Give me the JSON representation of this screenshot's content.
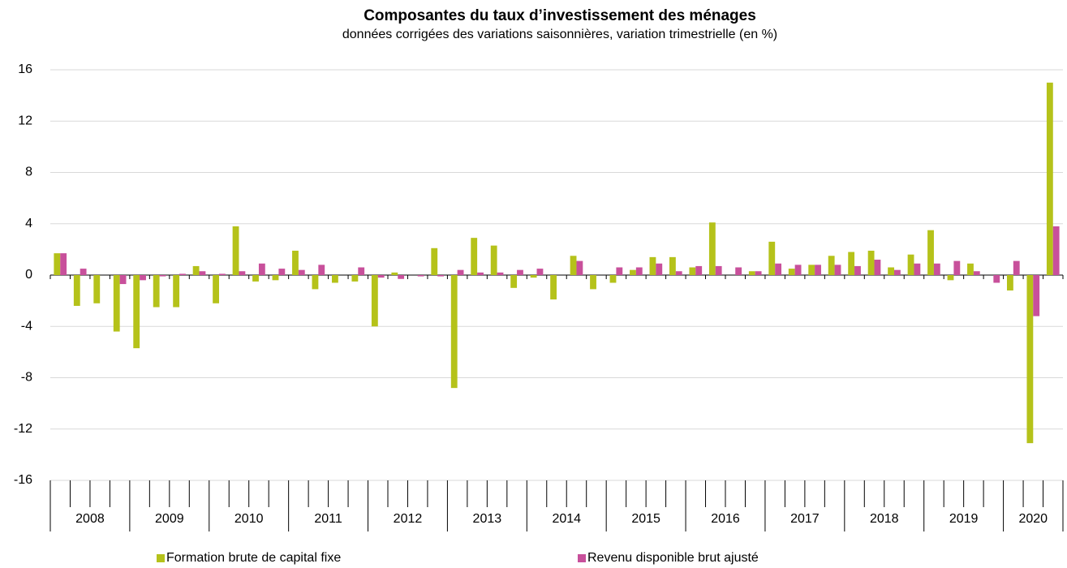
{
  "chart_data": {
    "type": "bar",
    "title": "Composantes du taux d’investissement des ménages",
    "subtitle": "données corrigées des variations saisonnières, variation trimestrielle (en %)",
    "groups": [
      "2008",
      "2009",
      "2010",
      "2011",
      "2012",
      "2013",
      "2014",
      "2015",
      "2016",
      "2017",
      "2018",
      "2019",
      "2020"
    ],
    "categories": [
      null,
      null,
      null,
      null,
      null,
      null,
      null,
      null,
      null,
      null,
      null,
      null,
      null,
      null,
      null,
      null,
      null,
      null,
      null,
      null,
      null,
      null,
      null,
      null,
      null,
      null,
      null,
      null,
      null,
      null,
      null,
      null,
      null,
      null,
      null,
      null,
      null,
      null,
      null,
      null,
      null,
      null,
      null,
      null,
      null,
      null,
      null,
      null,
      null,
      null,
      null
    ],
    "series": [
      {
        "name": "Formation brute de capital fixe",
        "color": "#b5c21a",
        "values": [
          1.7,
          -2.4,
          -2.2,
          -4.4,
          -5.7,
          -2.5,
          -2.5,
          0.7,
          -2.2,
          3.8,
          -0.5,
          -0.4,
          1.9,
          -1.1,
          -0.6,
          -0.5,
          -4.0,
          0.2,
          0,
          2.1,
          -8.8,
          2.9,
          2.3,
          -1.0,
          -0.2,
          -1.9,
          1.5,
          -1.1,
          -0.6,
          0.4,
          1.4,
          1.4,
          0.6,
          4.1,
          0,
          0.3,
          2.6,
          0.5,
          0.8,
          1.5,
          1.8,
          1.9,
          0.6,
          1.6,
          3.5,
          -0.4,
          0.9,
          0,
          -1.2,
          -13.1,
          15.0
        ]
      },
      {
        "name": "Revenu disponible brut ajusté",
        "color": "#c8509b",
        "values": [
          1.7,
          0.5,
          0,
          -0.7,
          -0.4,
          -0.1,
          0.1,
          0.3,
          0.1,
          0.3,
          0.9,
          0.5,
          0.4,
          0.8,
          0,
          0.6,
          -0.2,
          -0.3,
          -0.1,
          -0.1,
          0.4,
          0.2,
          0.2,
          0.4,
          0.5,
          0,
          1.1,
          0,
          0.6,
          0.6,
          0.9,
          0.3,
          0.7,
          0.7,
          0.6,
          0.3,
          0.9,
          0.8,
          0.8,
          0.8,
          0.7,
          1.2,
          0.4,
          0.9,
          0.9,
          1.1,
          0.3,
          -0.6,
          1.1,
          -3.2,
          3.8
        ]
      }
    ],
    "ylim": [
      -16,
      16
    ],
    "yticks": [
      -16,
      -12,
      -8,
      -4,
      0,
      4,
      8,
      12,
      16
    ],
    "grid": true,
    "legend": "bottom"
  }
}
